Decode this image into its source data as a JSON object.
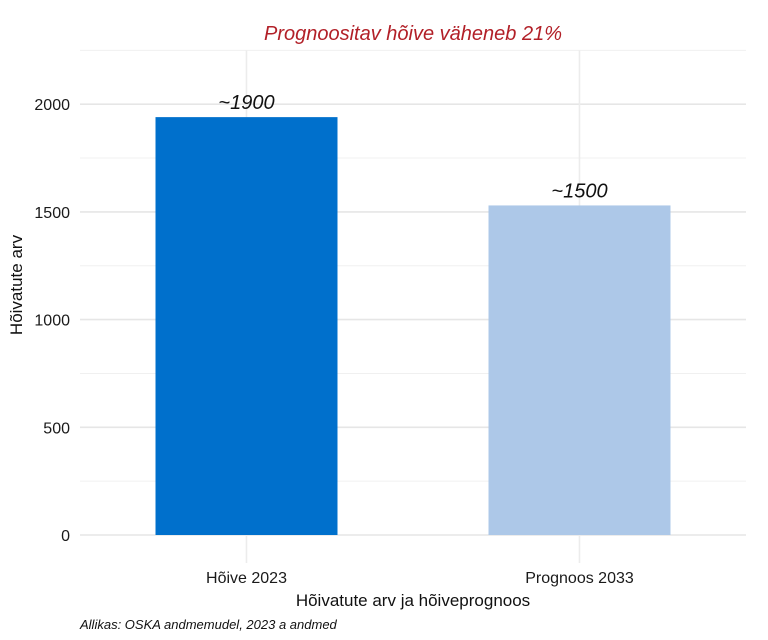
{
  "chart_data": {
    "type": "bar",
    "title": "Prognoositav hõive väheneb 21%",
    "title_color": "#b22028",
    "categories": [
      "Hõive 2023",
      "Prognoos 2033"
    ],
    "values": [
      1940,
      1530
    ],
    "bar_labels": [
      "~1900",
      "~1500"
    ],
    "bar_colors": [
      "#0070cc",
      "#adc8e8"
    ],
    "xlabel": "Hõivatute arv ja hõiveprognoos",
    "ylabel": "Hõivatute arv",
    "ylim": [
      0,
      2250
    ],
    "yticks": [
      0,
      500,
      1000,
      1500,
      2000
    ],
    "grid": true,
    "caption": "Allikas: OSKA andmemudel, 2023 a andmed"
  }
}
